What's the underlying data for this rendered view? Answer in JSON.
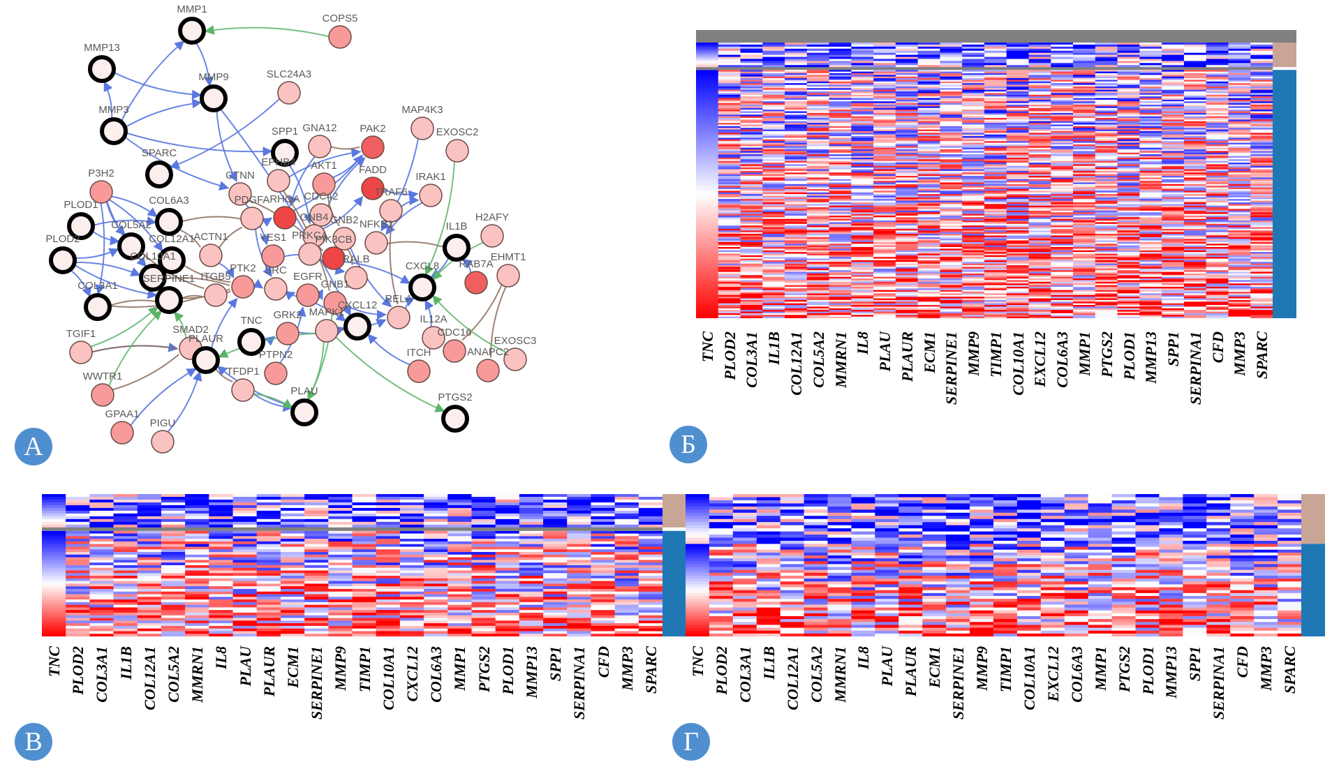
{
  "panels": {
    "A": {
      "badge": "А"
    },
    "B": {
      "badge": "Б"
    },
    "V": {
      "badge": "В"
    },
    "G": {
      "badge": "Г"
    }
  },
  "network": {
    "legend_edge_colors": {
      "blue": "#5a78e0",
      "brown": "#8b6b5a",
      "green": "#5cb46a"
    },
    "node_colors": {
      "hub_fill": "#fdeeee",
      "hub_stroke": "#000000",
      "light": "#fbc2c2",
      "medium": "#f89a9a",
      "strong": "#f06060",
      "strongest": "#ee4646"
    },
    "nodes": [
      {
        "id": "MMP1",
        "hub": true,
        "level": "hub"
      },
      {
        "id": "COPS5",
        "hub": false,
        "level": "medium"
      },
      {
        "id": "MMP13",
        "hub": true,
        "level": "hub"
      },
      {
        "id": "MMP9",
        "hub": true,
        "level": "hub"
      },
      {
        "id": "SLC24A3",
        "hub": false,
        "level": "light"
      },
      {
        "id": "MMP3",
        "hub": true,
        "level": "hub"
      },
      {
        "id": "MAP4K3",
        "hub": false,
        "level": "light"
      },
      {
        "id": "EXOSC2",
        "hub": false,
        "level": "light"
      },
      {
        "id": "SPP1",
        "hub": true,
        "level": "hub"
      },
      {
        "id": "GNA12",
        "hub": false,
        "level": "light"
      },
      {
        "id": "PAK2",
        "hub": false,
        "level": "strong"
      },
      {
        "id": "SPARC",
        "hub": true,
        "level": "hub"
      },
      {
        "id": "P3H2",
        "hub": false,
        "level": "medium"
      },
      {
        "id": "EPHB4",
        "hub": false,
        "level": "light"
      },
      {
        "id": "AKT1",
        "hub": false,
        "level": "medium"
      },
      {
        "id": "FADD",
        "hub": false,
        "level": "strongest"
      },
      {
        "id": "IRAK1",
        "hub": false,
        "level": "light"
      },
      {
        "id": "CTNNB1",
        "hub": false,
        "level": "light"
      },
      {
        "id": "CDC42",
        "hub": false,
        "level": "light"
      },
      {
        "id": "TRAF6",
        "hub": false,
        "level": "light"
      },
      {
        "id": "PLOD1",
        "hub": true,
        "level": "hub"
      },
      {
        "id": "COL6A3",
        "hub": true,
        "level": "hub"
      },
      {
        "id": "PDGFA",
        "hub": false,
        "level": "light"
      },
      {
        "id": "RHOA",
        "hub": false,
        "level": "strongest"
      },
      {
        "id": "GNB4",
        "hub": false,
        "level": "light"
      },
      {
        "id": "GNB2",
        "hub": false,
        "level": "light"
      },
      {
        "id": "NFKB1",
        "hub": false,
        "level": "light"
      },
      {
        "id": "H2AFY",
        "hub": false,
        "level": "light"
      },
      {
        "id": "IL1B",
        "hub": true,
        "level": "hub"
      },
      {
        "id": "COL5A2",
        "hub": true,
        "level": "hub"
      },
      {
        "id": "PLOD2",
        "hub": true,
        "level": "hub"
      },
      {
        "id": "COL12A1",
        "hub": true,
        "level": "hub"
      },
      {
        "id": "ACTN1",
        "hub": false,
        "level": "light"
      },
      {
        "id": "YES1",
        "hub": false,
        "level": "medium"
      },
      {
        "id": "PRKCA",
        "hub": false,
        "level": "light"
      },
      {
        "id": "PIK3CB",
        "hub": false,
        "level": "strongest"
      },
      {
        "id": "RALB",
        "hub": false,
        "level": "light"
      },
      {
        "id": "CXCL8",
        "hub": true,
        "level": "hub"
      },
      {
        "id": "RAB7A",
        "hub": false,
        "level": "strong"
      },
      {
        "id": "EHMT1",
        "hub": false,
        "level": "light"
      },
      {
        "id": "COL10A1",
        "hub": true,
        "level": "hub"
      },
      {
        "id": "SERPINE1",
        "hub": true,
        "level": "hub"
      },
      {
        "id": "COL3A1",
        "hub": true,
        "level": "hub"
      },
      {
        "id": "ITGB5",
        "hub": false,
        "level": "light"
      },
      {
        "id": "PTK2",
        "hub": false,
        "level": "medium"
      },
      {
        "id": "SRC",
        "hub": false,
        "level": "light"
      },
      {
        "id": "EGFR",
        "hub": false,
        "level": "medium"
      },
      {
        "id": "GNB1",
        "hub": false,
        "level": "medium"
      },
      {
        "id": "CXCL12",
        "hub": true,
        "level": "hub"
      },
      {
        "id": "RELA",
        "hub": false,
        "level": "light"
      },
      {
        "id": "IL12A",
        "hub": false,
        "level": "light"
      },
      {
        "id": "TGIF1",
        "hub": false,
        "level": "light"
      },
      {
        "id": "SMAD2",
        "hub": false,
        "level": "light"
      },
      {
        "id": "TNC",
        "hub": true,
        "level": "hub"
      },
      {
        "id": "GRK2",
        "hub": false,
        "level": "medium"
      },
      {
        "id": "MAPK1",
        "hub": false,
        "level": "light"
      },
      {
        "id": "PLAUR",
        "hub": true,
        "level": "hub"
      },
      {
        "id": "EXOSC3",
        "hub": false,
        "level": "light"
      },
      {
        "id": "CDC16",
        "hub": false,
        "level": "medium"
      },
      {
        "id": "ITCH",
        "hub": false,
        "level": "medium"
      },
      {
        "id": "ANAPC2",
        "hub": false,
        "level": "medium"
      },
      {
        "id": "WWTR1",
        "hub": false,
        "level": "medium"
      },
      {
        "id": "TFDP1",
        "hub": false,
        "level": "light"
      },
      {
        "id": "PTPN2",
        "hub": false,
        "level": "medium"
      },
      {
        "id": "PLAU",
        "hub": true,
        "level": "hub"
      },
      {
        "id": "PTGS2",
        "hub": true,
        "level": "hub"
      },
      {
        "id": "GPAA1",
        "hub": false,
        "level": "medium"
      },
      {
        "id": "PIGU",
        "hub": false,
        "level": "light"
      }
    ],
    "label_text": {
      "CTNNB1": "CTNN",
      "RHOA": "RHOA",
      "GNB4": "GNB4",
      "NFKB1": "NFKB1",
      "YES1": "YES1",
      "PRKCA": "PRKCA",
      "PIK3CB": "PIK3CB",
      "COL10A1": "COL10A1",
      "SERPINE1": "SERPINE1",
      "FADD": "FADD"
    }
  },
  "heatmaps": {
    "B": {
      "labels": [
        "TNC",
        "PLOD2",
        "COL3A1",
        "IL1B",
        "COL12A1",
        "COL5A2",
        "MMRN1",
        "IL8",
        "PLAU",
        "PLAUR",
        "ECM1",
        "SERPINE1",
        "MMP9",
        "TIMP1",
        "COL10A1",
        "EXCL12",
        "COL6A3",
        "MMP1",
        "PTGS2",
        "PLOD1",
        "MMP13",
        "SPP1",
        "SERPINA1",
        "CFD",
        "MMP3",
        "SPARC"
      ],
      "groups": [
        {
          "name": "group-1",
          "color": "#c9a596",
          "share": 0.09
        },
        {
          "name": "group-2",
          "color": "#1f78b4",
          "share": 0.91
        }
      ]
    },
    "V": {
      "labels": [
        "TNC",
        "PLOD2",
        "COL3A1",
        "IL1B",
        "COL12A1",
        "COL5A2",
        "MMRN1",
        "IL8",
        "PLAU",
        "PLAUR",
        "ECM1",
        "SERPINE1",
        "MMP9",
        "TIMP1",
        "COL10A1",
        "CXCL12",
        "COL6A3",
        "MMP1",
        "PTGS2",
        "PLOD1",
        "MMP13",
        "SPP1",
        "SERPINA1",
        "CFD",
        "MMP3",
        "SPARC"
      ],
      "groups": [
        {
          "name": "group-1",
          "color": "#c9a596",
          "share": 0.24
        },
        {
          "name": "group-2",
          "color": "#1f78b4",
          "share": 0.76
        }
      ]
    },
    "G": {
      "labels": [
        "TNC",
        "PLOD2",
        "COL3A1",
        "IL1B",
        "COL12A1",
        "COL5A2",
        "MMRN1",
        "IL8",
        "PLAU",
        "PLAUR",
        "ECM1",
        "SERPINE1",
        "MMP9",
        "TIMP1",
        "COL10A1",
        "EXCL12",
        "COL6A3",
        "MMP1",
        "PTGS2",
        "PLOD1",
        "MMP13",
        "SPP1",
        "SERPINA1",
        "CFD",
        "MMP3",
        "SPARC"
      ],
      "groups": [
        {
          "name": "group-1",
          "color": "#c9a596",
          "share": 0.35
        },
        {
          "name": "group-2",
          "color": "#1f78b4",
          "share": 0.65
        }
      ]
    },
    "colors": {
      "low": "#0000ff",
      "mid": "#ffffff",
      "high": "#ff0000",
      "separator": "#808080"
    }
  }
}
